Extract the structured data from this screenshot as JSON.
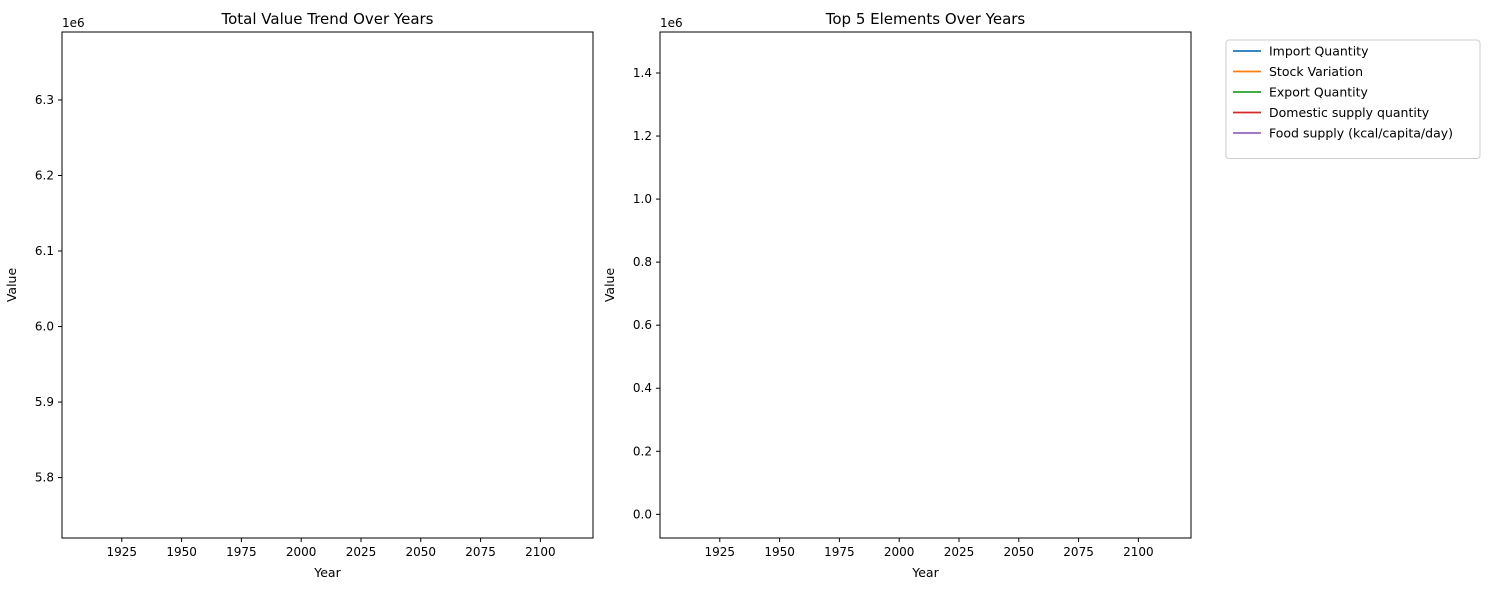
{
  "chart_data": [
    {
      "type": "line",
      "title": "Total Value Trend Over Years",
      "xlabel": "Year",
      "ylabel": "Value",
      "offset_text": "1e6",
      "xlim": [
        1900,
        2122
      ],
      "ylim": [
        5.72,
        6.39
      ],
      "xticks": [
        1925,
        1950,
        1975,
        2000,
        2025,
        2050,
        2075,
        2100
      ],
      "yticks": [
        5.8,
        5.9,
        6.0,
        6.1,
        6.2,
        6.3
      ],
      "ytick_labels": [
        "5.8",
        "5.9",
        "6.0",
        "6.1",
        "6.2",
        "6.3"
      ],
      "series": [],
      "grid": false
    },
    {
      "type": "line",
      "title": "Top 5 Elements Over Years",
      "xlabel": "Year",
      "ylabel": "Value",
      "offset_text": "1e6",
      "xlim": [
        1900,
        2122
      ],
      "ylim": [
        -0.075,
        1.53
      ],
      "xticks": [
        1925,
        1950,
        1975,
        2000,
        2025,
        2050,
        2075,
        2100
      ],
      "yticks": [
        0.0,
        0.2,
        0.4,
        0.6,
        0.8,
        1.0,
        1.2,
        1.4
      ],
      "ytick_labels": [
        "0.0",
        "0.2",
        "0.4",
        "0.6",
        "0.8",
        "1.0",
        "1.2",
        "1.4"
      ],
      "grid": false,
      "legend": "outside-upper-right",
      "series": [
        {
          "name": "Import Quantity",
          "color": "#1f77b4",
          "values": []
        },
        {
          "name": "Stock Variation",
          "color": "#ff7f0e",
          "values": []
        },
        {
          "name": "Export Quantity",
          "color": "#2ca02c",
          "values": []
        },
        {
          "name": "Domestic supply quantity",
          "color": "#d62728",
          "values": []
        },
        {
          "name": "Food supply (kcal/capita/day)",
          "color": "#9467bd",
          "values": []
        }
      ]
    }
  ]
}
